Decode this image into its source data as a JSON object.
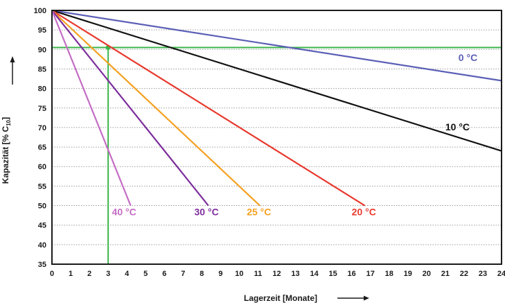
{
  "chart_data": {
    "type": "line",
    "title": "",
    "xlabel": "Lagerzeit [Monate]",
    "ylabel": "Kapazität [% C",
    "ylabel_sub": "10",
    "ylabel_suffix": "]",
    "xlim": [
      0,
      24
    ],
    "ylim": [
      35,
      100
    ],
    "xticks": [
      0,
      1,
      2,
      3,
      4,
      5,
      6,
      7,
      8,
      9,
      10,
      11,
      12,
      13,
      14,
      15,
      16,
      17,
      18,
      19,
      20,
      21,
      22,
      23,
      24
    ],
    "yticks": [
      35,
      40,
      45,
      50,
      55,
      60,
      65,
      70,
      75,
      80,
      85,
      90,
      95,
      100
    ],
    "grid": "horizontal-dotted",
    "series": [
      {
        "name": "0 °C",
        "color": "#5b5fb5",
        "x": [
          0,
          24
        ],
        "y": [
          100,
          82
        ],
        "label_x": 21.7,
        "label_y": 87
      },
      {
        "name": "10 °C",
        "color": "#111111",
        "x": [
          0,
          24
        ],
        "y": [
          100,
          64
        ],
        "label_x": 21.0,
        "label_y": 69.3
      },
      {
        "name": "20 °C",
        "color": "#e8392e",
        "x": [
          0,
          16.7
        ],
        "y": [
          100,
          50
        ],
        "label_x": 16.0,
        "label_y": 47.5
      },
      {
        "name": "25 °C",
        "color": "#f5a020",
        "x": [
          0,
          11.1
        ],
        "y": [
          100,
          50
        ],
        "label_x": 10.4,
        "label_y": 47.5
      },
      {
        "name": "30 °C",
        "color": "#7d2e9c",
        "x": [
          0,
          8.35
        ],
        "y": [
          100,
          50
        ],
        "label_x": 7.6,
        "label_y": 47.5
      },
      {
        "name": "40 °C",
        "color": "#c46cc4",
        "x": [
          0,
          4.2
        ],
        "y": [
          100,
          50
        ],
        "label_x": 3.2,
        "label_y": 47.5
      }
    ],
    "reference_lines": [
      {
        "orientation": "horizontal",
        "value": 90.5,
        "color": "#3cb54a"
      },
      {
        "orientation": "vertical",
        "value": 3,
        "color": "#3cb54a"
      }
    ],
    "reference_point": {
      "x": 3,
      "y": 90.5,
      "color": "#3cb54a"
    }
  }
}
